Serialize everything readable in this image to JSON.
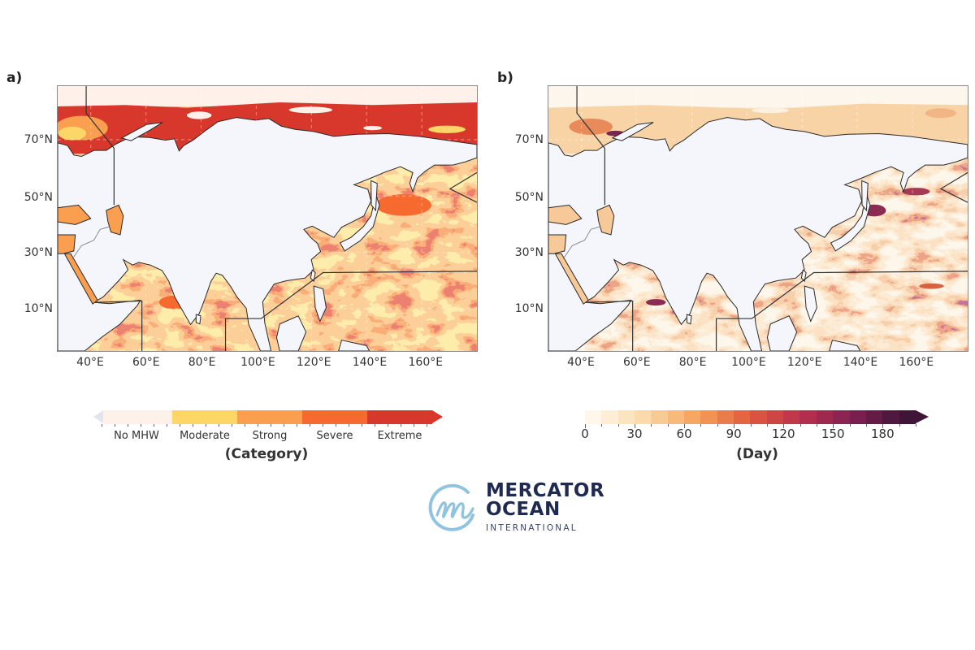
{
  "panels": [
    {
      "label": "a)",
      "lat_ticks": [
        "70°N",
        "50°N",
        "30°N",
        "10°N"
      ],
      "lon_ticks": [
        "40°E",
        "60°E",
        "80°E",
        "100°E",
        "120°E",
        "140°E",
        "160°E"
      ]
    },
    {
      "label": "b)",
      "lat_ticks": [
        "70°N",
        "50°N",
        "30°N",
        "10°N"
      ],
      "lon_ticks": [
        "40°E",
        "60°E",
        "80°E",
        "100°E",
        "120°E",
        "140°E",
        "160°E"
      ]
    }
  ],
  "colorbar_category": {
    "title": "(Category)",
    "labels": [
      "No MHW",
      "Moderate",
      "Strong",
      "Severe",
      "Extreme"
    ],
    "colors": [
      "#fdf1ea",
      "#fdd668",
      "#fa9e50",
      "#f66a30",
      "#d7382b"
    ],
    "extend": "max"
  },
  "colorbar_day": {
    "title": "(Day)",
    "ticks": [
      "0",
      "30",
      "60",
      "90",
      "120",
      "150",
      "180"
    ],
    "range": [
      0,
      200
    ],
    "step": 10,
    "stops": [
      "#fff8ea",
      "#fbd9a8",
      "#f4a25c",
      "#e05a3d",
      "#b8304f",
      "#7a2050",
      "#3d1537"
    ],
    "extend": "max"
  },
  "colors": {
    "land": "#f5f6fb",
    "coast": "#2a2a2a",
    "map_a_ocean_palette": [
      "#fdd668",
      "#fdd668",
      "#fdd668",
      "#fdd668",
      "#fa9e50",
      "#fa9e50",
      "#f66a30",
      "#d7382b",
      "#d7382b",
      "#d7382b"
    ],
    "map_b_ocean_palette": [
      "#fcebd2",
      "#fcebd2",
      "#fcebd2",
      "#fcebd2",
      "#f9d7ab",
      "#f6c28e",
      "#ef9f66",
      "#d9603f",
      "#8c2b52",
      "#8c2b52"
    ]
  },
  "logo": {
    "line1": "MERCATOR",
    "line2": "OCEAN",
    "line3": "INTERNATIONAL",
    "color": "#1f2a50",
    "mark_color": "#8fc3e0"
  }
}
